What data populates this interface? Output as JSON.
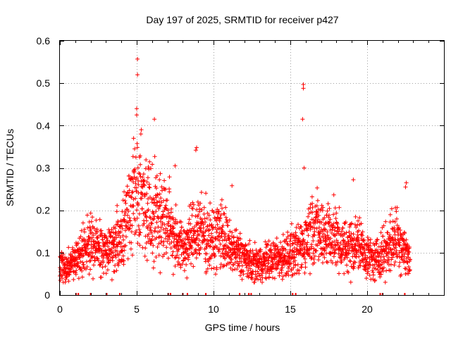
{
  "chart_data": {
    "type": "scatter",
    "title": "Day 197 of 2025, SRMTID for receiver p427",
    "xlabel": "GPS time / hours",
    "ylabel": "SRMTID / TECUs",
    "xlim": [
      0,
      25
    ],
    "ylim": [
      0,
      0.6
    ],
    "xticks": [
      0,
      5,
      10,
      15,
      20
    ],
    "xtick_labels": [
      "0",
      "5",
      "10",
      "15",
      "20"
    ],
    "yticks": [
      0,
      0.1,
      0.2,
      0.3,
      0.4,
      0.5,
      0.6
    ],
    "ytick_labels": [
      "0",
      "0.1",
      "0.2",
      "0.3",
      "0.4",
      "0.5",
      "0.6"
    ],
    "grid": true,
    "marker": "+",
    "color": "#ff0000",
    "series": [
      {
        "name": "SRMTID",
        "trend": [
          [
            0.0,
            0.07
          ],
          [
            0.5,
            0.065
          ],
          [
            1.0,
            0.08
          ],
          [
            1.5,
            0.11
          ],
          [
            2.0,
            0.12
          ],
          [
            2.5,
            0.11
          ],
          [
            3.0,
            0.1
          ],
          [
            3.5,
            0.12
          ],
          [
            4.0,
            0.14
          ],
          [
            4.5,
            0.21
          ],
          [
            5.0,
            0.25
          ],
          [
            5.5,
            0.22
          ],
          [
            6.0,
            0.2
          ],
          [
            6.5,
            0.19
          ],
          [
            7.0,
            0.17
          ],
          [
            7.5,
            0.14
          ],
          [
            8.0,
            0.11
          ],
          [
            8.5,
            0.13
          ],
          [
            9.0,
            0.16
          ],
          [
            9.5,
            0.14
          ],
          [
            10.0,
            0.13
          ],
          [
            10.5,
            0.15
          ],
          [
            11.0,
            0.11
          ],
          [
            11.5,
            0.1
          ],
          [
            12.0,
            0.09
          ],
          [
            12.5,
            0.07
          ],
          [
            13.0,
            0.075
          ],
          [
            13.5,
            0.08
          ],
          [
            14.0,
            0.085
          ],
          [
            14.5,
            0.09
          ],
          [
            15.0,
            0.1
          ],
          [
            15.5,
            0.1
          ],
          [
            16.0,
            0.13
          ],
          [
            16.5,
            0.17
          ],
          [
            17.0,
            0.14
          ],
          [
            17.5,
            0.15
          ],
          [
            18.0,
            0.13
          ],
          [
            18.5,
            0.11
          ],
          [
            19.0,
            0.12
          ],
          [
            19.5,
            0.12
          ],
          [
            20.0,
            0.09
          ],
          [
            20.5,
            0.08
          ],
          [
            21.0,
            0.1
          ],
          [
            21.5,
            0.12
          ],
          [
            22.0,
            0.14
          ],
          [
            22.5,
            0.1
          ],
          [
            22.8,
            0.08
          ]
        ],
        "outliers": [
          [
            5.05,
            0.557
          ],
          [
            5.05,
            0.52
          ],
          [
            5.0,
            0.44
          ],
          [
            5.0,
            0.425
          ],
          [
            6.15,
            0.415
          ],
          [
            15.85,
            0.497
          ],
          [
            15.85,
            0.488
          ],
          [
            15.8,
            0.415
          ],
          [
            15.9,
            0.3
          ],
          [
            8.9,
            0.348
          ],
          [
            8.85,
            0.342
          ],
          [
            7.5,
            0.305
          ],
          [
            22.55,
            0.265
          ],
          [
            22.5,
            0.255
          ],
          [
            19.1,
            0.272
          ],
          [
            5.3,
            0.39
          ],
          [
            4.8,
            0.37
          ],
          [
            11.2,
            0.258
          ]
        ],
        "gaps": [
          0.0,
          1.05,
          1.2,
          2.0,
          3.05,
          3.9,
          7.05,
          7.2,
          8.0,
          8.3,
          9.5,
          11.7,
          12.3,
          12.45,
          15.15,
          15.35,
          20.85,
          21.0,
          22.45
        ]
      }
    ]
  }
}
